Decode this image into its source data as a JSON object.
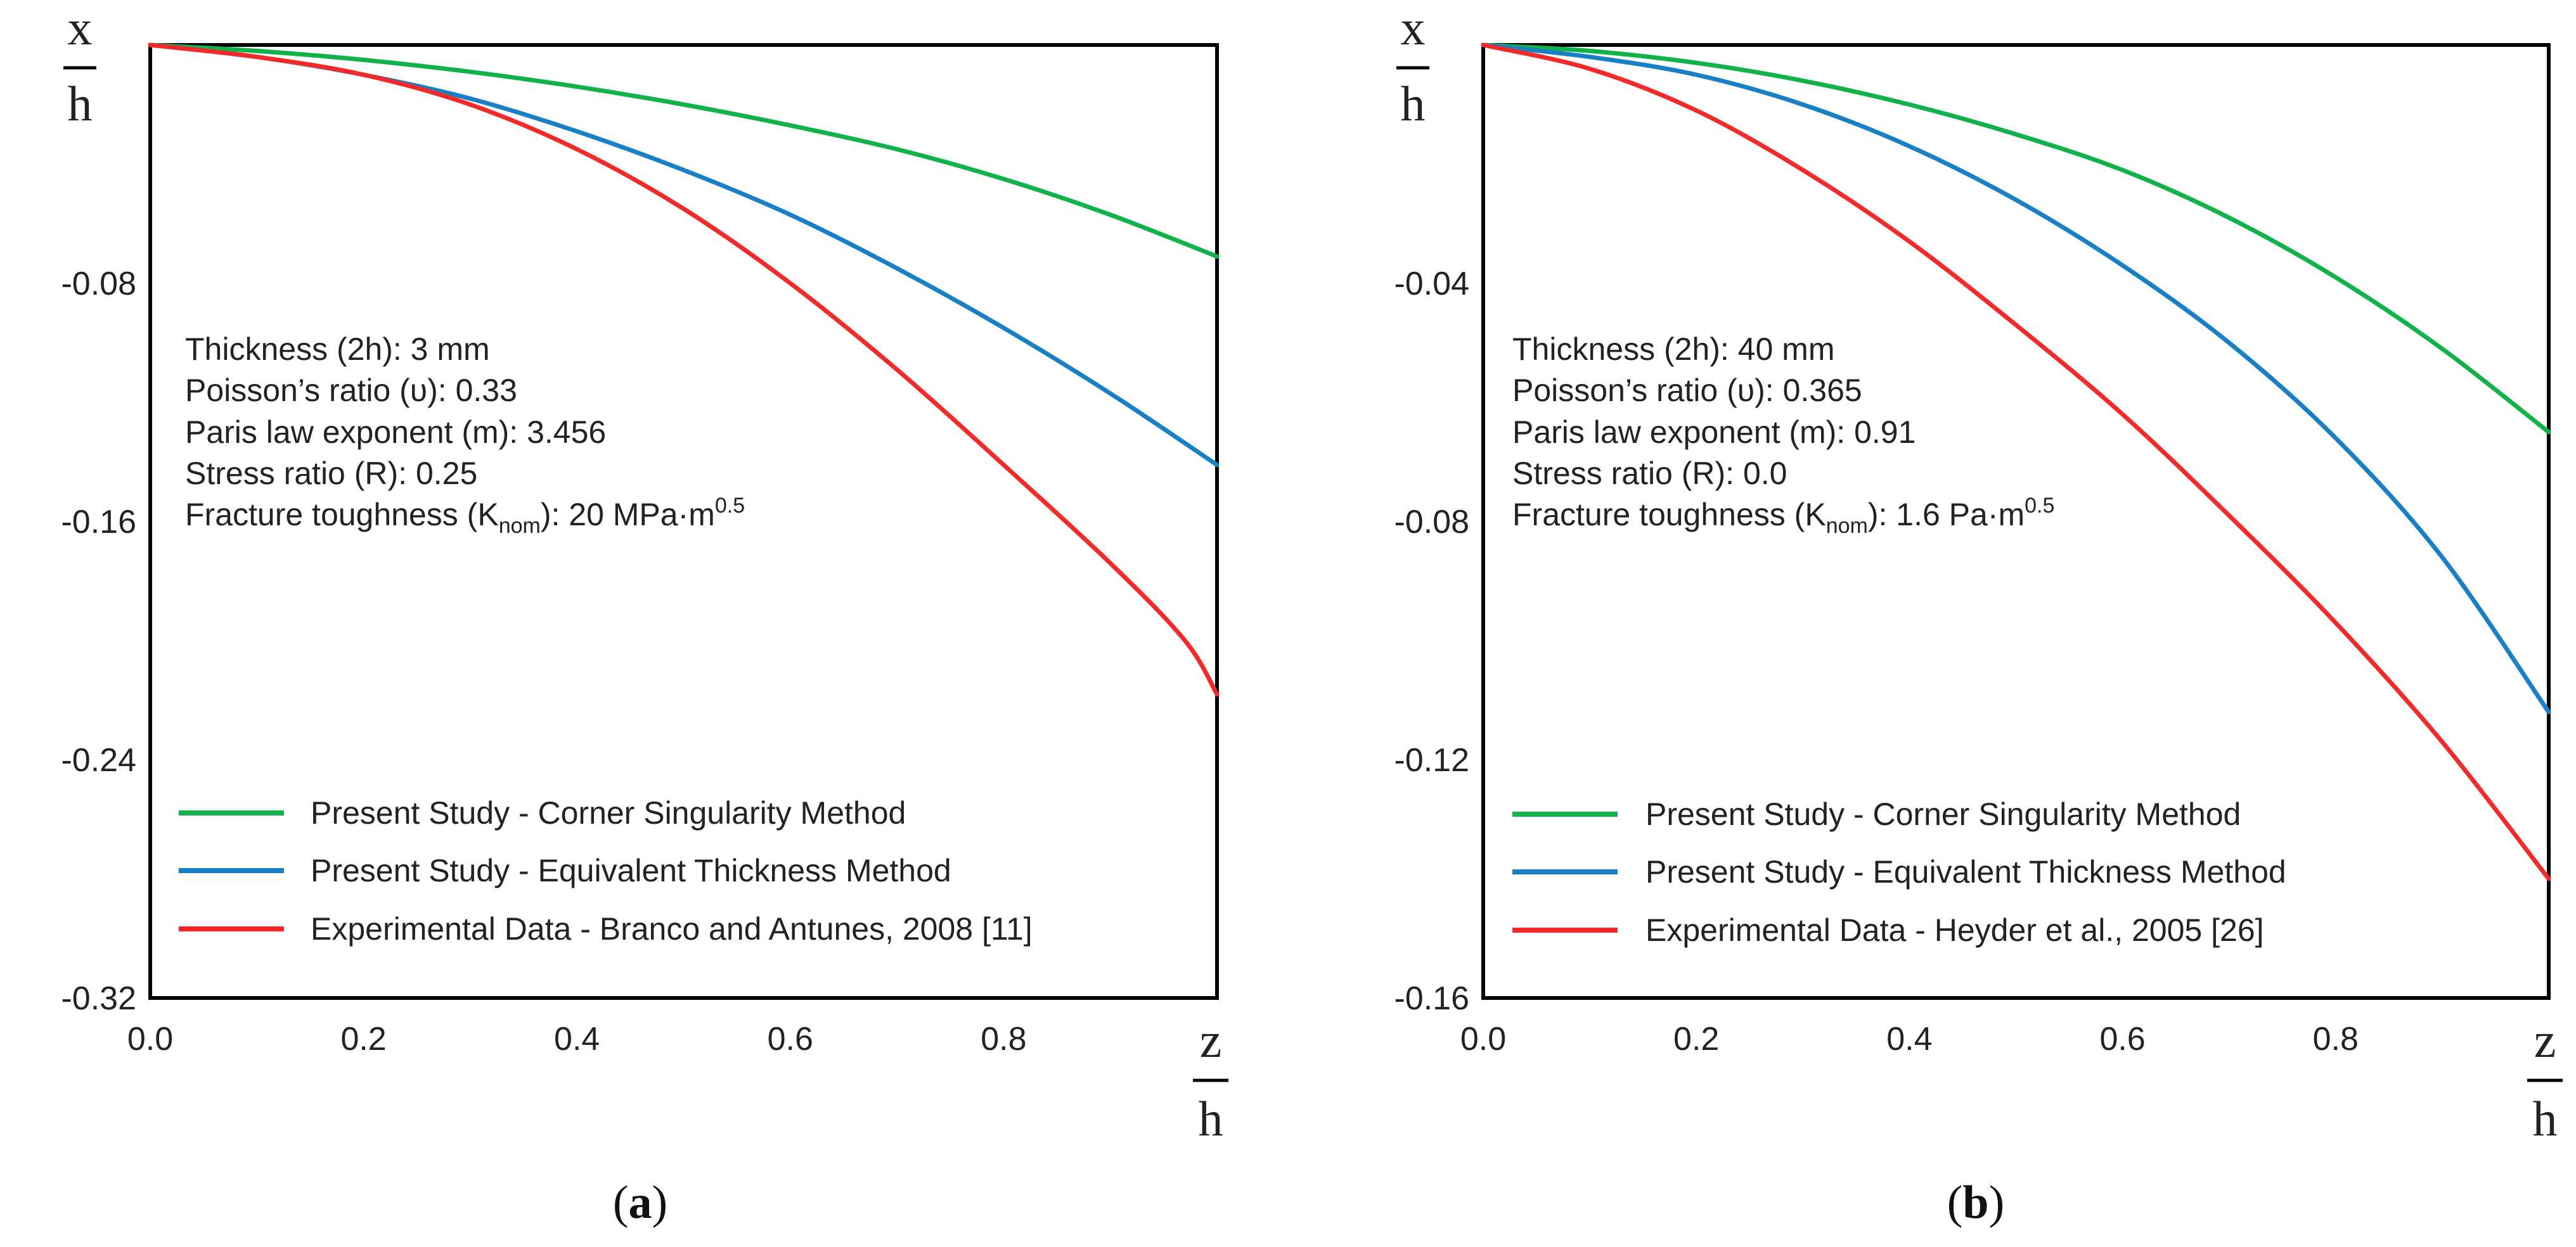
{
  "colors": {
    "green": "#12b24a",
    "blue": "#1a80c6",
    "red": "#f22a2a",
    "axis": "#000000"
  },
  "panels": [
    {
      "caption_letter": "a",
      "y_axis_label": {
        "numerator": "x",
        "denominator": "h"
      },
      "x_axis_label": {
        "numerator": "z",
        "denominator": "h"
      },
      "info_lines": {
        "thickness": "Thickness (2h): 3 mm",
        "poisson": "Poisson’s ratio (υ): 0.33",
        "paris": "Paris law exponent (m): 3.456",
        "stress": "Stress ratio (R): 0.25",
        "fracture_prefix": "Fracture toughness (K",
        "fracture_sub": "nom",
        "fracture_mid": "): 20 MPa·m",
        "fracture_sup": "0.5"
      },
      "legend": [
        "Present Study - Corner Singularity Method",
        "Present Study - Equivalent Thickness Method",
        "Experimental Data - Branco and Antunes, 2008 [11]"
      ]
    },
    {
      "caption_letter": "b",
      "y_axis_label": {
        "numerator": "x",
        "denominator": "h"
      },
      "x_axis_label": {
        "numerator": "z",
        "denominator": "h"
      },
      "info_lines": {
        "thickness": "Thickness (2h): 40 mm",
        "poisson": "Poisson’s ratio (υ): 0.365",
        "paris": "Paris law exponent (m): 0.91",
        "stress": "Stress ratio (R): 0.0",
        "fracture_prefix": "Fracture toughness (K",
        "fracture_sub": "nom",
        "fracture_mid": "): 1.6 Pa·m",
        "fracture_sup": "0.5"
      },
      "legend": [
        "Present Study - Corner Singularity Method",
        "Present Study - Equivalent Thickness Method",
        "Experimental Data - Heyder et al., 2005 [26]"
      ]
    }
  ],
  "chart_data": [
    {
      "type": "line",
      "xlim": [
        0,
        1
      ],
      "ylim": [
        -0.32,
        0
      ],
      "x_ticks": [
        "0.0",
        "0.2",
        "0.4",
        "0.6",
        "0.8"
      ],
      "y_ticks": [
        "-0.08",
        "-0.16",
        "-0.24",
        "-0.32"
      ],
      "x_tick_values": [
        0,
        0.2,
        0.4,
        0.6,
        0.8
      ],
      "y_tick_values": [
        -0.08,
        -0.16,
        -0.24,
        -0.32
      ],
      "grid": false,
      "legend_position": "bottom-left",
      "series": [
        {
          "name": "Present Study - Corner Singularity Method",
          "color_key": "green",
          "x": [
            0,
            0.1,
            0.2,
            0.3,
            0.4,
            0.5,
            0.6,
            0.7,
            0.8,
            0.9,
            1.0
          ],
          "y": [
            0,
            -0.002,
            -0.005,
            -0.009,
            -0.014,
            -0.02,
            -0.027,
            -0.035,
            -0.045,
            -0.057,
            -0.071
          ]
        },
        {
          "name": "Present Study - Equivalent Thickness Method",
          "color_key": "blue",
          "x": [
            0,
            0.1,
            0.2,
            0.3,
            0.4,
            0.5,
            0.6,
            0.7,
            0.8,
            0.9,
            1.0
          ],
          "y": [
            0,
            -0.004,
            -0.01,
            -0.018,
            -0.029,
            -0.042,
            -0.057,
            -0.075,
            -0.095,
            -0.117,
            -0.141
          ]
        },
        {
          "name": "Experimental Data - Branco and Antunes, 2008 [11]",
          "color_key": "red",
          "x": [
            0,
            0.1,
            0.2,
            0.3,
            0.4,
            0.5,
            0.6,
            0.7,
            0.8,
            0.9,
            0.97,
            1.0
          ],
          "y": [
            0,
            -0.004,
            -0.01,
            -0.02,
            -0.035,
            -0.055,
            -0.08,
            -0.109,
            -0.141,
            -0.174,
            -0.2,
            -0.218
          ]
        }
      ]
    },
    {
      "type": "line",
      "xlim": [
        0,
        1
      ],
      "ylim": [
        -0.16,
        0
      ],
      "x_ticks": [
        "0.0",
        "0.2",
        "0.4",
        "0.6",
        "0.8"
      ],
      "y_ticks": [
        "-0.04",
        "-0.08",
        "-0.12",
        "-0.16"
      ],
      "x_tick_values": [
        0,
        0.2,
        0.4,
        0.6,
        0.8
      ],
      "y_tick_values": [
        -0.04,
        -0.08,
        -0.12,
        -0.16
      ],
      "grid": false,
      "legend_position": "bottom-left",
      "series": [
        {
          "name": "Present Study - Corner Singularity Method",
          "color_key": "green",
          "x": [
            0,
            0.1,
            0.2,
            0.3,
            0.4,
            0.5,
            0.6,
            0.7,
            0.8,
            0.9,
            1.0
          ],
          "y": [
            0,
            -0.001,
            -0.003,
            -0.006,
            -0.01,
            -0.015,
            -0.021,
            -0.029,
            -0.039,
            -0.051,
            -0.065
          ]
        },
        {
          "name": "Present Study - Equivalent Thickness Method",
          "color_key": "blue",
          "x": [
            0,
            0.1,
            0.2,
            0.3,
            0.4,
            0.5,
            0.6,
            0.7,
            0.8,
            0.9,
            1.0
          ],
          "y": [
            0,
            -0.002,
            -0.005,
            -0.01,
            -0.017,
            -0.026,
            -0.037,
            -0.05,
            -0.066,
            -0.086,
            -0.112
          ]
        },
        {
          "name": "Experimental Data - Heyder et al., 2005 [26]",
          "color_key": "red",
          "x": [
            0,
            0.1,
            0.2,
            0.3,
            0.4,
            0.5,
            0.6,
            0.7,
            0.8,
            0.9,
            1.0
          ],
          "y": [
            0,
            -0.004,
            -0.011,
            -0.021,
            -0.033,
            -0.047,
            -0.062,
            -0.079,
            -0.097,
            -0.117,
            -0.14
          ]
        }
      ]
    }
  ]
}
